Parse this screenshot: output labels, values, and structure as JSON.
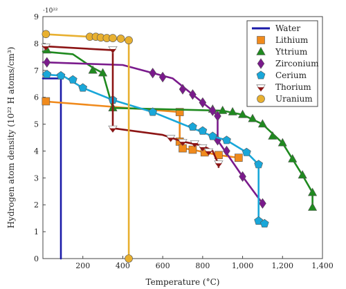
{
  "chart_data": {
    "type": "line",
    "title": "",
    "xlabel": "Temperature (°C)",
    "ylabel": "Hydrogen atom density (10²² H atoms/cm³)",
    "y_exponent": "·10²²",
    "xlim": [
      0,
      1400
    ],
    "ylim": [
      0,
      9
    ],
    "x_ticks": [
      {
        "value": 200,
        "label": "200"
      },
      {
        "value": 400,
        "label": "400"
      },
      {
        "value": 600,
        "label": "600"
      },
      {
        "value": 800,
        "label": "800"
      },
      {
        "value": 1000,
        "label": "1,000"
      },
      {
        "value": 1200,
        "label": "1,200"
      },
      {
        "value": 1400,
        "label": "1,400"
      }
    ],
    "y_ticks": [
      {
        "value": 0,
        "label": "0"
      },
      {
        "value": 1,
        "label": "1"
      },
      {
        "value": 2,
        "label": "2"
      },
      {
        "value": 3,
        "label": "3"
      },
      {
        "value": 4,
        "label": "4"
      },
      {
        "value": 5,
        "label": "5"
      },
      {
        "value": 6,
        "label": "6"
      },
      {
        "value": 7,
        "label": "7"
      },
      {
        "value": 8,
        "label": "8"
      },
      {
        "value": 9,
        "label": "9"
      }
    ],
    "grid": false,
    "legend_position": "top-right",
    "series": [
      {
        "name": "Water",
        "color": "#1a1aa8",
        "marker": "none",
        "line": [
          [
            0,
            6.7
          ],
          [
            90,
            6.7
          ],
          [
            90,
            0
          ]
        ],
        "markers": []
      },
      {
        "name": "Lithium",
        "color": "#f08a1c",
        "marker": "square",
        "line": [
          [
            0,
            5.85
          ],
          [
            685,
            5.45
          ],
          [
            685,
            4.35
          ],
          [
            700,
            4.1
          ],
          [
            750,
            4.05
          ],
          [
            810,
            3.95
          ],
          [
            880,
            3.85
          ],
          [
            980,
            3.75
          ]
        ],
        "markers": [
          [
            15,
            5.85
          ],
          [
            685,
            5.45
          ],
          [
            685,
            4.35
          ],
          [
            700,
            4.1
          ],
          [
            750,
            4.05
          ],
          [
            810,
            3.95
          ],
          [
            880,
            3.85
          ],
          [
            980,
            3.75
          ]
        ]
      },
      {
        "name": "Yttrium",
        "color": "#1f8a1f",
        "marker": "triangle",
        "line": [
          [
            0,
            7.7
          ],
          [
            150,
            7.6
          ],
          [
            250,
            7.1
          ],
          [
            300,
            6.9
          ],
          [
            350,
            5.6
          ],
          [
            900,
            5.5
          ],
          [
            1000,
            5.35
          ],
          [
            1100,
            5.0
          ],
          [
            1200,
            4.3
          ],
          [
            1300,
            3.1
          ],
          [
            1350,
            2.45
          ],
          [
            1350,
            1.9
          ]
        ],
        "markers": [
          [
            20,
            7.75
          ],
          [
            250,
            7.0
          ],
          [
            300,
            6.9
          ],
          [
            350,
            5.6
          ],
          [
            850,
            5.55
          ],
          [
            900,
            5.5
          ],
          [
            950,
            5.45
          ],
          [
            1000,
            5.35
          ],
          [
            1050,
            5.2
          ],
          [
            1100,
            5.0
          ],
          [
            1150,
            4.55
          ],
          [
            1200,
            4.3
          ],
          [
            1250,
            3.7
          ],
          [
            1300,
            3.1
          ],
          [
            1350,
            2.45
          ],
          [
            1350,
            1.9
          ]
        ],
        "marker_color": "#1f8a1f"
      },
      {
        "name": "Zirconium",
        "color": "#7a1a8c",
        "marker": "diamond",
        "line": [
          [
            0,
            7.3
          ],
          [
            400,
            7.2
          ],
          [
            650,
            6.7
          ],
          [
            750,
            6.1
          ],
          [
            850,
            5.5
          ],
          [
            875,
            5.3
          ],
          [
            875,
            4.4
          ],
          [
            1000,
            3.05
          ],
          [
            1100,
            2.05
          ]
        ],
        "markers": [
          [
            20,
            7.3
          ],
          [
            550,
            6.9
          ],
          [
            600,
            6.75
          ],
          [
            700,
            6.3
          ],
          [
            750,
            6.1
          ],
          [
            800,
            5.8
          ],
          [
            850,
            5.5
          ],
          [
            875,
            5.3
          ],
          [
            875,
            4.4
          ],
          [
            920,
            4.0
          ],
          [
            1000,
            3.05
          ],
          [
            1100,
            2.05
          ]
        ]
      },
      {
        "name": "Cerium",
        "color": "#19a7d9",
        "marker": "pentagon",
        "line": [
          [
            0,
            6.85
          ],
          [
            100,
            6.8
          ],
          [
            200,
            6.35
          ],
          [
            350,
            5.9
          ],
          [
            550,
            5.45
          ],
          [
            750,
            4.85
          ],
          [
            850,
            4.55
          ],
          [
            920,
            4.4
          ],
          [
            1020,
            3.95
          ],
          [
            1080,
            3.5
          ],
          [
            1080,
            1.4
          ],
          [
            1110,
            1.3
          ]
        ],
        "markers": [
          [
            20,
            6.85
          ],
          [
            90,
            6.8
          ],
          [
            150,
            6.65
          ],
          [
            200,
            6.35
          ],
          [
            350,
            5.9
          ],
          [
            550,
            5.45
          ],
          [
            750,
            4.9
          ],
          [
            800,
            4.75
          ],
          [
            850,
            4.55
          ],
          [
            920,
            4.4
          ],
          [
            1020,
            3.95
          ],
          [
            1080,
            3.5
          ],
          [
            1080,
            1.4
          ],
          [
            1110,
            1.3
          ]
        ]
      },
      {
        "name": "Thorium",
        "color": "#8c1414",
        "marker": "triangle-down",
        "line": [
          [
            0,
            7.9
          ],
          [
            350,
            7.75
          ],
          [
            350,
            4.85
          ],
          [
            600,
            4.6
          ],
          [
            700,
            4.35
          ],
          [
            800,
            4.2
          ],
          [
            850,
            4.0
          ],
          [
            880,
            3.5
          ],
          [
            880,
            3.4
          ]
        ],
        "markers": [
          [
            15,
            7.9
          ],
          [
            350,
            7.8
          ],
          [
            350,
            4.85
          ],
          [
            640,
            4.5
          ],
          [
            700,
            4.35
          ],
          [
            760,
            4.3
          ],
          [
            800,
            4.15
          ],
          [
            830,
            4.0
          ],
          [
            880,
            3.55
          ]
        ]
      },
      {
        "name": "Uranium",
        "color": "#e8b030",
        "marker": "circle",
        "line": [
          [
            0,
            8.35
          ],
          [
            235,
            8.25
          ],
          [
            390,
            8.15
          ],
          [
            430,
            8.1
          ],
          [
            430,
            0
          ]
        ],
        "markers": [
          [
            15,
            8.35
          ],
          [
            235,
            8.25
          ],
          [
            265,
            8.25
          ],
          [
            290,
            8.22
          ],
          [
            320,
            8.2
          ],
          [
            350,
            8.2
          ],
          [
            390,
            8.18
          ],
          [
            430,
            8.12
          ],
          [
            430,
            0
          ]
        ]
      }
    ]
  }
}
